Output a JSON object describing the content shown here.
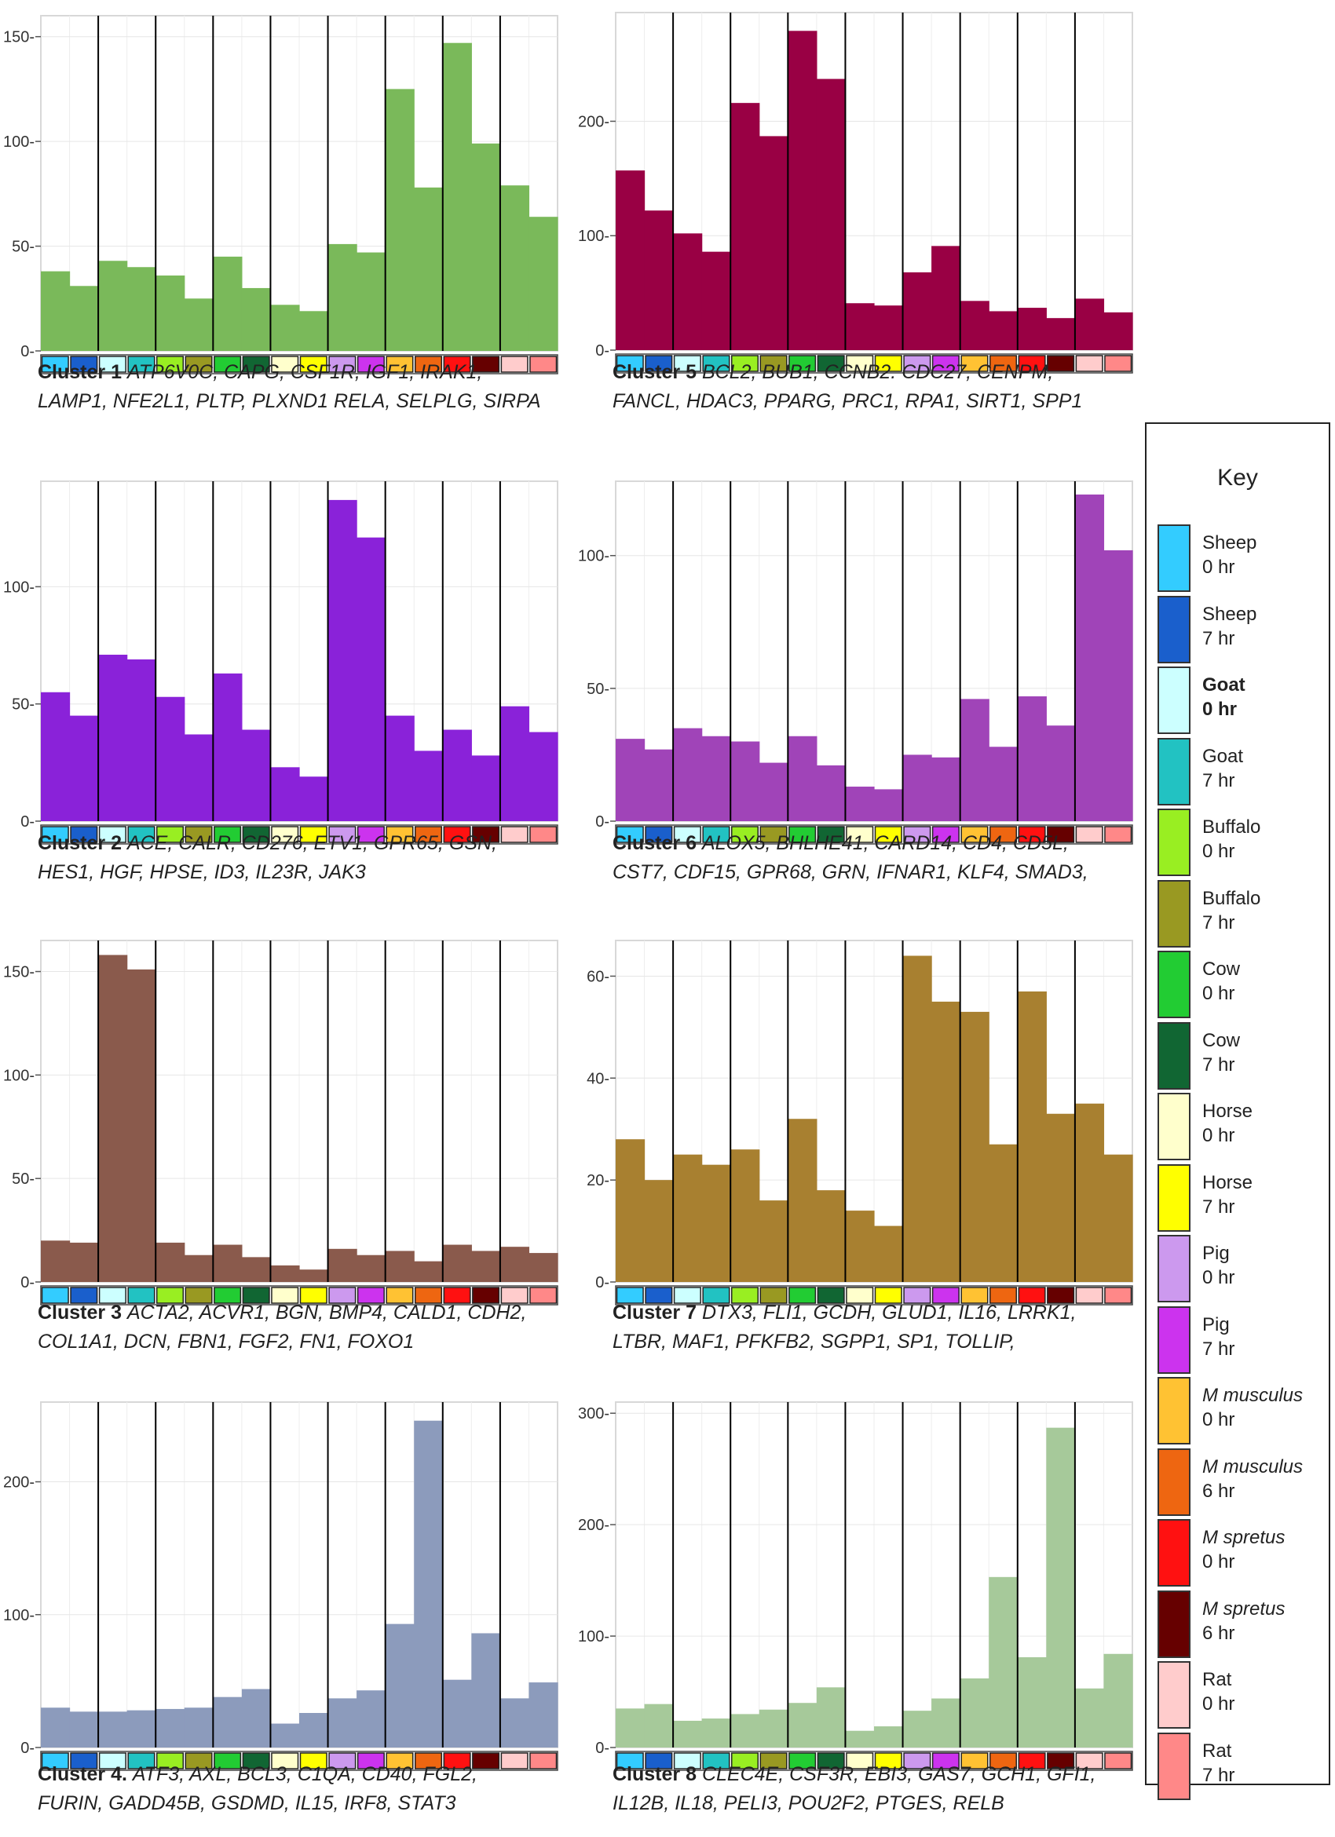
{
  "chart_data": [
    {
      "type": "bar",
      "title": "Cluster 1",
      "genes": [
        "ATP6V0C, CAPG, CSF1R, IGF1, IRAK1,",
        "LAMP1, NFE2L1, PLTP, PLXND1 RELA, SELPLG, SIRPA"
      ],
      "yticks": [
        0,
        50,
        100,
        150
      ],
      "ylim": [
        0,
        160
      ],
      "values": [
        38,
        31,
        43,
        40,
        36,
        25,
        45,
        30,
        22,
        19,
        51,
        47,
        125,
        78,
        147,
        99,
        79,
        64
      ],
      "color": "#7ab95a"
    },
    {
      "type": "bar",
      "title": "Cluster 5",
      "genes": [
        "BCL2, BUB1, CCNB2. CDC27, CENPM,",
        "FANCL, HDAC3,  PPARG, PRC1, RPA1, SIRT1, SPP1"
      ],
      "yticks": [
        0,
        100,
        200
      ],
      "ylim": [
        0,
        295
      ],
      "values": [
        157,
        122,
        102,
        86,
        216,
        187,
        279,
        237,
        41,
        39,
        68,
        91,
        43,
        34,
        37,
        28,
        45,
        33
      ],
      "color": "#990044"
    },
    {
      "type": "bar",
      "title": "Cluster 2",
      "genes": [
        "ACE, CALR, CD276, ETV1,  GPR65, GSN,",
        "HES1, HGF, HPSE, ID3, IL23R, JAK3"
      ],
      "yticks": [
        0,
        50,
        100
      ],
      "ylim": [
        0,
        145
      ],
      "values": [
        55,
        45,
        71,
        69,
        53,
        37,
        63,
        39,
        23,
        19,
        137,
        121,
        45,
        30,
        39,
        28,
        49,
        38
      ],
      "color": "#8a22d9"
    },
    {
      "type": "bar",
      "title": "Cluster 6",
      "genes": [
        "ALOX5, BHLHE41,  CARD14, CD4, CD5L,",
        "CST7, CDF15, GPR68, GRN, IFNAR1,  KLF4, SMAD3,"
      ],
      "yticks": [
        0,
        50,
        100
      ],
      "ylim": [
        0,
        128
      ],
      "values": [
        31,
        27,
        35,
        32,
        30,
        22,
        32,
        21,
        13,
        12,
        25,
        24,
        46,
        28,
        47,
        36,
        123,
        102
      ],
      "color": "#a044b8"
    },
    {
      "type": "bar",
      "title": "Cluster 3",
      "genes": [
        "ACTA2, ACVR1, BGN,  BMP4, CALD1, CDH2,",
        "COL1A1, DCN, FBN1, FGF2, FN1, FOXO1"
      ],
      "yticks": [
        0,
        50,
        100,
        150
      ],
      "ylim": [
        0,
        165
      ],
      "values": [
        20,
        19,
        158,
        151,
        19,
        13,
        18,
        12,
        8,
        6,
        16,
        13,
        15,
        10,
        18,
        15,
        17,
        14
      ],
      "color": "#8a5a4c"
    },
    {
      "type": "bar",
      "title": "Cluster 7",
      "genes": [
        "DTX3, FLI1,  GCDH, GLUD1, IL16, LRRK1,",
        "LTBR,  MAF1, PFKFB2, SGPP1, SP1, TOLLIP,"
      ],
      "yticks": [
        0,
        20,
        40,
        60
      ],
      "ylim": [
        0,
        67
      ],
      "values": [
        28,
        20,
        25,
        23,
        26,
        16,
        32,
        18,
        14,
        11,
        64,
        55,
        53,
        27,
        57,
        33,
        35,
        25
      ],
      "color": "#a88030"
    },
    {
      "type": "bar",
      "title": "Cluster 4.",
      "genes": [
        "ATF3, AXL, BCL3,  C1QA, CD40, FGL2,",
        "FURIN,  GADD45B, GSDMD, IL15, IRF8, STAT3"
      ],
      "yticks": [
        0,
        100,
        200
      ],
      "ylim": [
        0,
        260
      ],
      "values": [
        30,
        27,
        27,
        28,
        29,
        30,
        38,
        44,
        18,
        26,
        37,
        43,
        93,
        246,
        51,
        86,
        37,
        49
      ],
      "color": "#8c9bbc"
    },
    {
      "type": "bar",
      "title": "Cluster 8",
      "genes": [
        "CLEC4E, CSF3R, EBI3, GAS7, GCH1, GFI1,",
        "IL12B, IL18, PELI3, POU2F2, PTGES, RELB"
      ],
      "yticks": [
        0,
        100,
        200,
        300
      ],
      "ylim": [
        0,
        310
      ],
      "values": [
        35,
        39,
        24,
        26,
        30,
        34,
        40,
        54,
        15,
        19,
        33,
        44,
        62,
        153,
        81,
        287,
        53,
        84
      ],
      "color": "#a6c99a"
    }
  ],
  "sample_colors": [
    "#33ccff",
    "#1a5fcc",
    "#ccffff",
    "#22c2c2",
    "#99ee22",
    "#999922",
    "#22cc33",
    "#116633",
    "#ffffcc",
    "#ffff00",
    "#cc99ee",
    "#cc33ee",
    "#ffc233",
    "#ee6611",
    "#ff1111",
    "#660000",
    "#ffcccc",
    "#ff8888"
  ],
  "key": {
    "title": "Key",
    "items": [
      {
        "species": "Sheep",
        "time": "0 hr",
        "color": "#33ccff",
        "style": "normal"
      },
      {
        "species": "Sheep",
        "time": "7 hr",
        "color": "#1a5fcc",
        "style": "normal"
      },
      {
        "species": "Goat",
        "time": "0 hr",
        "color": "#ccffff",
        "style": "bold"
      },
      {
        "species": "Goat",
        "time": "7 hr",
        "color": "#22c2c2",
        "style": "normal"
      },
      {
        "species": "Buffalo",
        "time": "0 hr",
        "color": "#99ee22",
        "style": "normal"
      },
      {
        "species": "Buffalo",
        "time": "7 hr",
        "color": "#999922",
        "style": "normal"
      },
      {
        "species": "Cow",
        "time": "0 hr",
        "color": "#22cc33",
        "style": "normal"
      },
      {
        "species": "Cow",
        "time": "7 hr",
        "color": "#116633",
        "style": "normal"
      },
      {
        "species": "Horse",
        "time": "0 hr",
        "color": "#ffffcc",
        "style": "normal"
      },
      {
        "species": "Horse",
        "time": "7 hr",
        "color": "#ffff00",
        "style": "normal"
      },
      {
        "species": "Pig",
        "time": "0 hr",
        "color": "#cc99ee",
        "style": "normal"
      },
      {
        "species": "Pig",
        "time": "7 hr",
        "color": "#cc33ee",
        "style": "normal"
      },
      {
        "species": "M musculus",
        "time": "0 hr",
        "color": "#ffc233",
        "style": "italic"
      },
      {
        "species": "M musculus",
        "time": "6 hr",
        "color": "#ee6611",
        "style": "italic"
      },
      {
        "species": "M spretus",
        "time": "0 hr",
        "color": "#ff1111",
        "style": "italic"
      },
      {
        "species": "M spretus",
        "time": "6 hr",
        "color": "#660000",
        "style": "italic"
      },
      {
        "species": "Rat",
        "time": "0 hr",
        "color": "#ffcccc",
        "style": "normal"
      },
      {
        "species": "Rat",
        "time": "7 hr",
        "color": "#ff8888",
        "style": "normal"
      }
    ]
  }
}
